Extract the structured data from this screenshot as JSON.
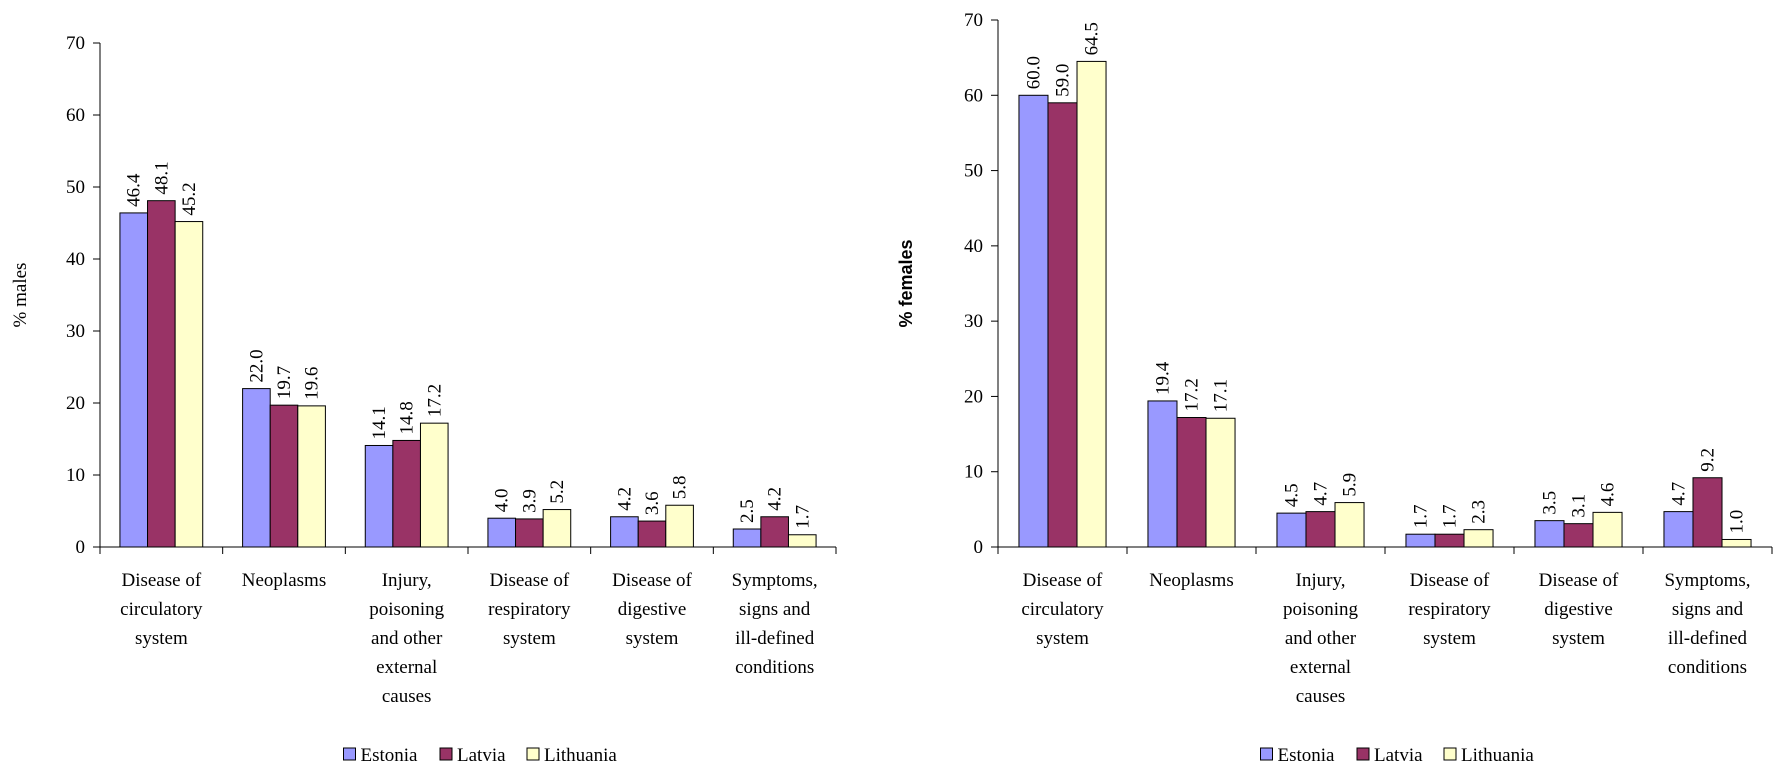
{
  "chart_data": [
    {
      "type": "bar",
      "y_label": "% males",
      "categories": [
        "Disease of circulatory system",
        "Neoplasms",
        "Injury, poisoning and other external causes",
        "Disease of respiratory system",
        "Disease of digestive system",
        "Symptoms, signs and ill-defined conditions"
      ],
      "series": [
        {
          "name": "Estonia",
          "color": "#9999ff",
          "values": [
            46.4,
            22.0,
            14.1,
            4.0,
            4.2,
            2.5
          ],
          "value_labels": [
            "46.4",
            "22.0",
            "14.1",
            "4.0",
            "4.2",
            "2.5"
          ]
        },
        {
          "name": "Latvia",
          "color": "#993366",
          "values": [
            48.1,
            19.7,
            14.8,
            3.9,
            3.6,
            4.2
          ],
          "value_labels": [
            "48.1",
            "19.7",
            "14.8",
            "3.9",
            "3.6",
            "4.2"
          ]
        },
        {
          "name": "Lithuania",
          "color": "#ffffcc",
          "values": [
            45.2,
            19.6,
            17.2,
            5.2,
            5.8,
            1.7
          ],
          "value_labels": [
            "45.2",
            "19.6",
            "17.2",
            "5.2",
            "5.8",
            "1.7"
          ]
        }
      ],
      "ylim": [
        0,
        70
      ],
      "yticks": [
        0,
        10,
        20,
        30,
        40,
        50,
        60,
        70
      ],
      "legend": "bottom"
    },
    {
      "type": "bar",
      "y_label": "% females",
      "categories": [
        "Disease of circulatory system",
        "Neoplasms",
        "Injury, poisoning and other external causes",
        "Disease of respiratory system",
        "Disease of digestive system",
        "Symptoms, signs and ill-defined conditions"
      ],
      "series": [
        {
          "name": "Estonia",
          "color": "#9999ff",
          "values": [
            60.0,
            19.4,
            4.5,
            1.7,
            3.5,
            4.7
          ],
          "value_labels": [
            "60.0",
            "19.4",
            "4.5",
            "1.7",
            "3.5",
            "4.7"
          ]
        },
        {
          "name": "Latvia",
          "color": "#993366",
          "values": [
            59.0,
            17.2,
            4.7,
            1.7,
            3.1,
            9.2
          ],
          "value_labels": [
            "59.0",
            "17.2",
            "4.7",
            "1.7",
            "3.1",
            "9.2"
          ]
        },
        {
          "name": "Lithuania",
          "color": "#ffffcc",
          "values": [
            64.5,
            17.1,
            5.9,
            2.3,
            4.6,
            1.0
          ],
          "value_labels": [
            "64.5",
            "17.1",
            "5.9",
            "2.3",
            "4.6",
            "1.0"
          ]
        }
      ],
      "ylim": [
        0,
        70
      ],
      "yticks": [
        0,
        10,
        20,
        30,
        40,
        50,
        60,
        70
      ],
      "legend": "bottom"
    }
  ]
}
